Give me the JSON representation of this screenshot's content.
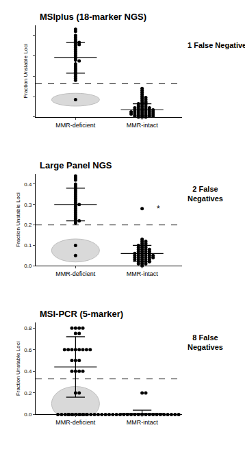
{
  "chart_data": [
    {
      "type": "scatter",
      "title": "MSIplus (18-marker NGS)",
      "note": [
        "1 False Negative"
      ],
      "ylabel": "Fraction Unstable Loci",
      "categories": [
        "MMR-deficient",
        "MMR-intact"
      ],
      "color": "#000000",
      "highlight_color": "#d9d9d9",
      "values": [
        [
          0.86,
          0.84,
          0.8,
          0.78,
          0.76,
          0.74,
          0.73,
          0.72,
          0.71,
          0.7,
          0.68,
          0.66,
          0.64,
          0.62,
          0.6,
          0.58,
          0.56,
          0.55,
          0.52,
          0.5,
          0.48,
          0.46,
          0.44,
          0.42,
          0.4,
          0.38,
          0.36,
          0.17
        ],
        [
          0.28,
          0.26,
          0.24,
          0.22,
          0.2,
          0.19,
          0.18,
          0.17,
          0.16,
          0.15,
          0.14,
          0.14,
          0.13,
          0.12,
          0.12,
          0.11,
          0.1,
          0.1,
          0.1,
          0.09,
          0.09,
          0.08,
          0.08,
          0.08,
          0.07,
          0.07,
          0.07,
          0.06,
          0.06,
          0.06,
          0.05,
          0.05,
          0.05,
          0.05,
          0.04,
          0.04,
          0.04,
          0.03,
          0.03,
          0.03,
          0.03,
          0.02,
          0.02,
          0.02,
          0.01,
          0.01,
          0.01,
          0,
          0,
          0
        ]
      ],
      "means": [
        0.58,
        0.07
      ],
      "sds": [
        0.15,
        0.06
      ],
      "threshold": 0.33,
      "ylim": [
        0,
        0.9
      ],
      "yticks": [
        0,
        0.2,
        0.4,
        0.6,
        0.8
      ],
      "tick_labels": "x",
      "grid": false
    },
    {
      "type": "scatter",
      "title": "Large Panel NGS",
      "note": [
        "2 False",
        "Negatives"
      ],
      "ylabel": "Fraction Unstable Loci",
      "categories": [
        "MMR-deficient",
        "MMR-intact"
      ],
      "color": "#000000",
      "highlight_color": "#d9d9d9",
      "values": [
        [
          0.44,
          0.43,
          0.42,
          0.4,
          0.39,
          0.38,
          0.37,
          0.36,
          0.35,
          0.34,
          0.33,
          0.32,
          0.31,
          0.3,
          0.3,
          0.29,
          0.28,
          0.27,
          0.26,
          0.25,
          0.24,
          0.23,
          0.22,
          0.22,
          0.21,
          0.1,
          0.05
        ],
        [
          0.28,
          0.13,
          0.12,
          0.12,
          0.11,
          0.11,
          0.1,
          0.1,
          0.1,
          0.09,
          0.09,
          0.09,
          0.08,
          0.08,
          0.08,
          0.08,
          0.07,
          0.07,
          0.07,
          0.07,
          0.06,
          0.06,
          0.06,
          0.06,
          0.06,
          0.05,
          0.05,
          0.05,
          0.05,
          0.05,
          0.05,
          0.04,
          0.04,
          0.04,
          0.04,
          0.04,
          0.04,
          0.03,
          0.03,
          0.03,
          0.03,
          0.03,
          0.02,
          0.02,
          0.02,
          0.02,
          0.01,
          0.01,
          0.01,
          0
        ]
      ],
      "means": [
        0.3,
        0.06
      ],
      "sds": [
        0.08,
        0.04
      ],
      "threshold": 0.2,
      "annotations": [
        {
          "text": "*",
          "category": "MMR-intact",
          "y": 0.28
        }
      ],
      "ylim": [
        0,
        0.45
      ],
      "yticks": [
        {
          "value": 0,
          "label": "0.0"
        },
        0.1,
        0.2,
        0.3,
        0.4
      ],
      "grid": false
    },
    {
      "type": "scatter",
      "title": "MSI-PCR (5-marker)",
      "note": [
        "8 False",
        "Negatives"
      ],
      "ylabel": "Fraction Unstable Loci",
      "categories": [
        "MMR-deficient",
        "MMR-intact"
      ],
      "color": "#000000",
      "highlight_color": "#d9d9d9",
      "values": [
        [
          0.8,
          0.8,
          0.8,
          0.8,
          0.75,
          0.75,
          0.6,
          0.6,
          0.6,
          0.6,
          0.6,
          0.6,
          0.6,
          0.6,
          0.5,
          0.5,
          0.5,
          0.4,
          0.4,
          0.4,
          0.4,
          0.2,
          0.2,
          0,
          0,
          0,
          0,
          0,
          0
        ],
        [
          0.2,
          0.2,
          0,
          0,
          0,
          0,
          0,
          0,
          0,
          0,
          0,
          0,
          0,
          0,
          0,
          0,
          0,
          0,
          0,
          0,
          0,
          0,
          0,
          0,
          0,
          0,
          0,
          0,
          0,
          0,
          0,
          0,
          0,
          0,
          0,
          0,
          0,
          0,
          0,
          0,
          0,
          0,
          0,
          0,
          0,
          0,
          0,
          0,
          0,
          0
        ]
      ],
      "means": [
        0.44,
        0.01
      ],
      "sds": [
        0.28,
        0.03
      ],
      "threshold": 0.33,
      "ylim": [
        0,
        0.85
      ],
      "yticks": [
        {
          "value": 0,
          "label": "0.0"
        },
        0.2,
        0.4,
        0.6,
        0.8
      ],
      "grid": false
    }
  ]
}
